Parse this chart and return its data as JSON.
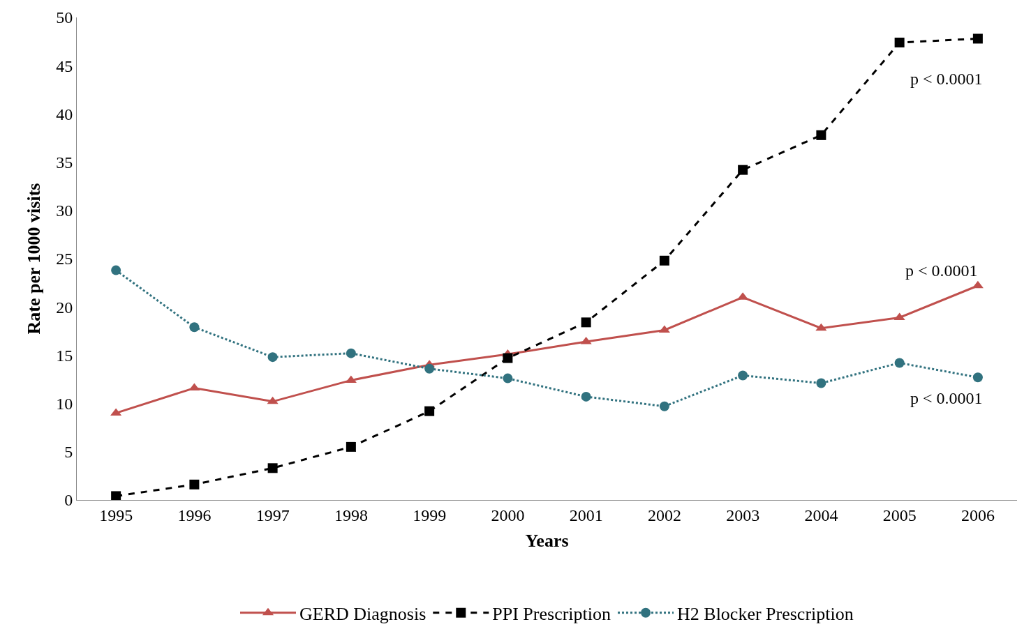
{
  "chart_data": {
    "type": "line",
    "xlabel": "Years",
    "ylabel": "Rate per 1000 visits",
    "categories": [
      "1995",
      "1996",
      "1997",
      "1998",
      "1999",
      "2000",
      "2001",
      "2002",
      "2003",
      "2004",
      "2005",
      "2006"
    ],
    "series": [
      {
        "name": "GERD Diagnosis",
        "color": "#c0504d",
        "marker": "triangle",
        "line_style": "solid",
        "values": [
          9.0,
          11.6,
          10.2,
          12.4,
          14.0,
          15.1,
          16.4,
          17.6,
          21.0,
          17.8,
          18.9,
          22.2
        ]
      },
      {
        "name": "PPI Prescription",
        "color": "#000000",
        "marker": "square",
        "line_style": "dashed",
        "values": [
          0.4,
          1.6,
          3.3,
          5.5,
          9.2,
          14.7,
          18.4,
          24.8,
          34.2,
          37.8,
          47.4,
          47.8
        ]
      },
      {
        "name": "H2 Blocker Prescription",
        "color": "#31727f",
        "marker": "circle",
        "line_style": "dotted",
        "values": [
          23.8,
          17.9,
          14.8,
          15.2,
          13.6,
          12.6,
          10.7,
          9.7,
          12.9,
          12.1,
          14.2,
          12.7
        ]
      }
    ],
    "annotations": [
      "p < 0.0001",
      "p < 0.0001",
      "p < 0.0001"
    ],
    "ylim": [
      0,
      50
    ],
    "yticks": [
      0,
      5,
      10,
      15,
      20,
      25,
      30,
      35,
      40,
      45,
      50
    ],
    "legend": "bottom"
  }
}
